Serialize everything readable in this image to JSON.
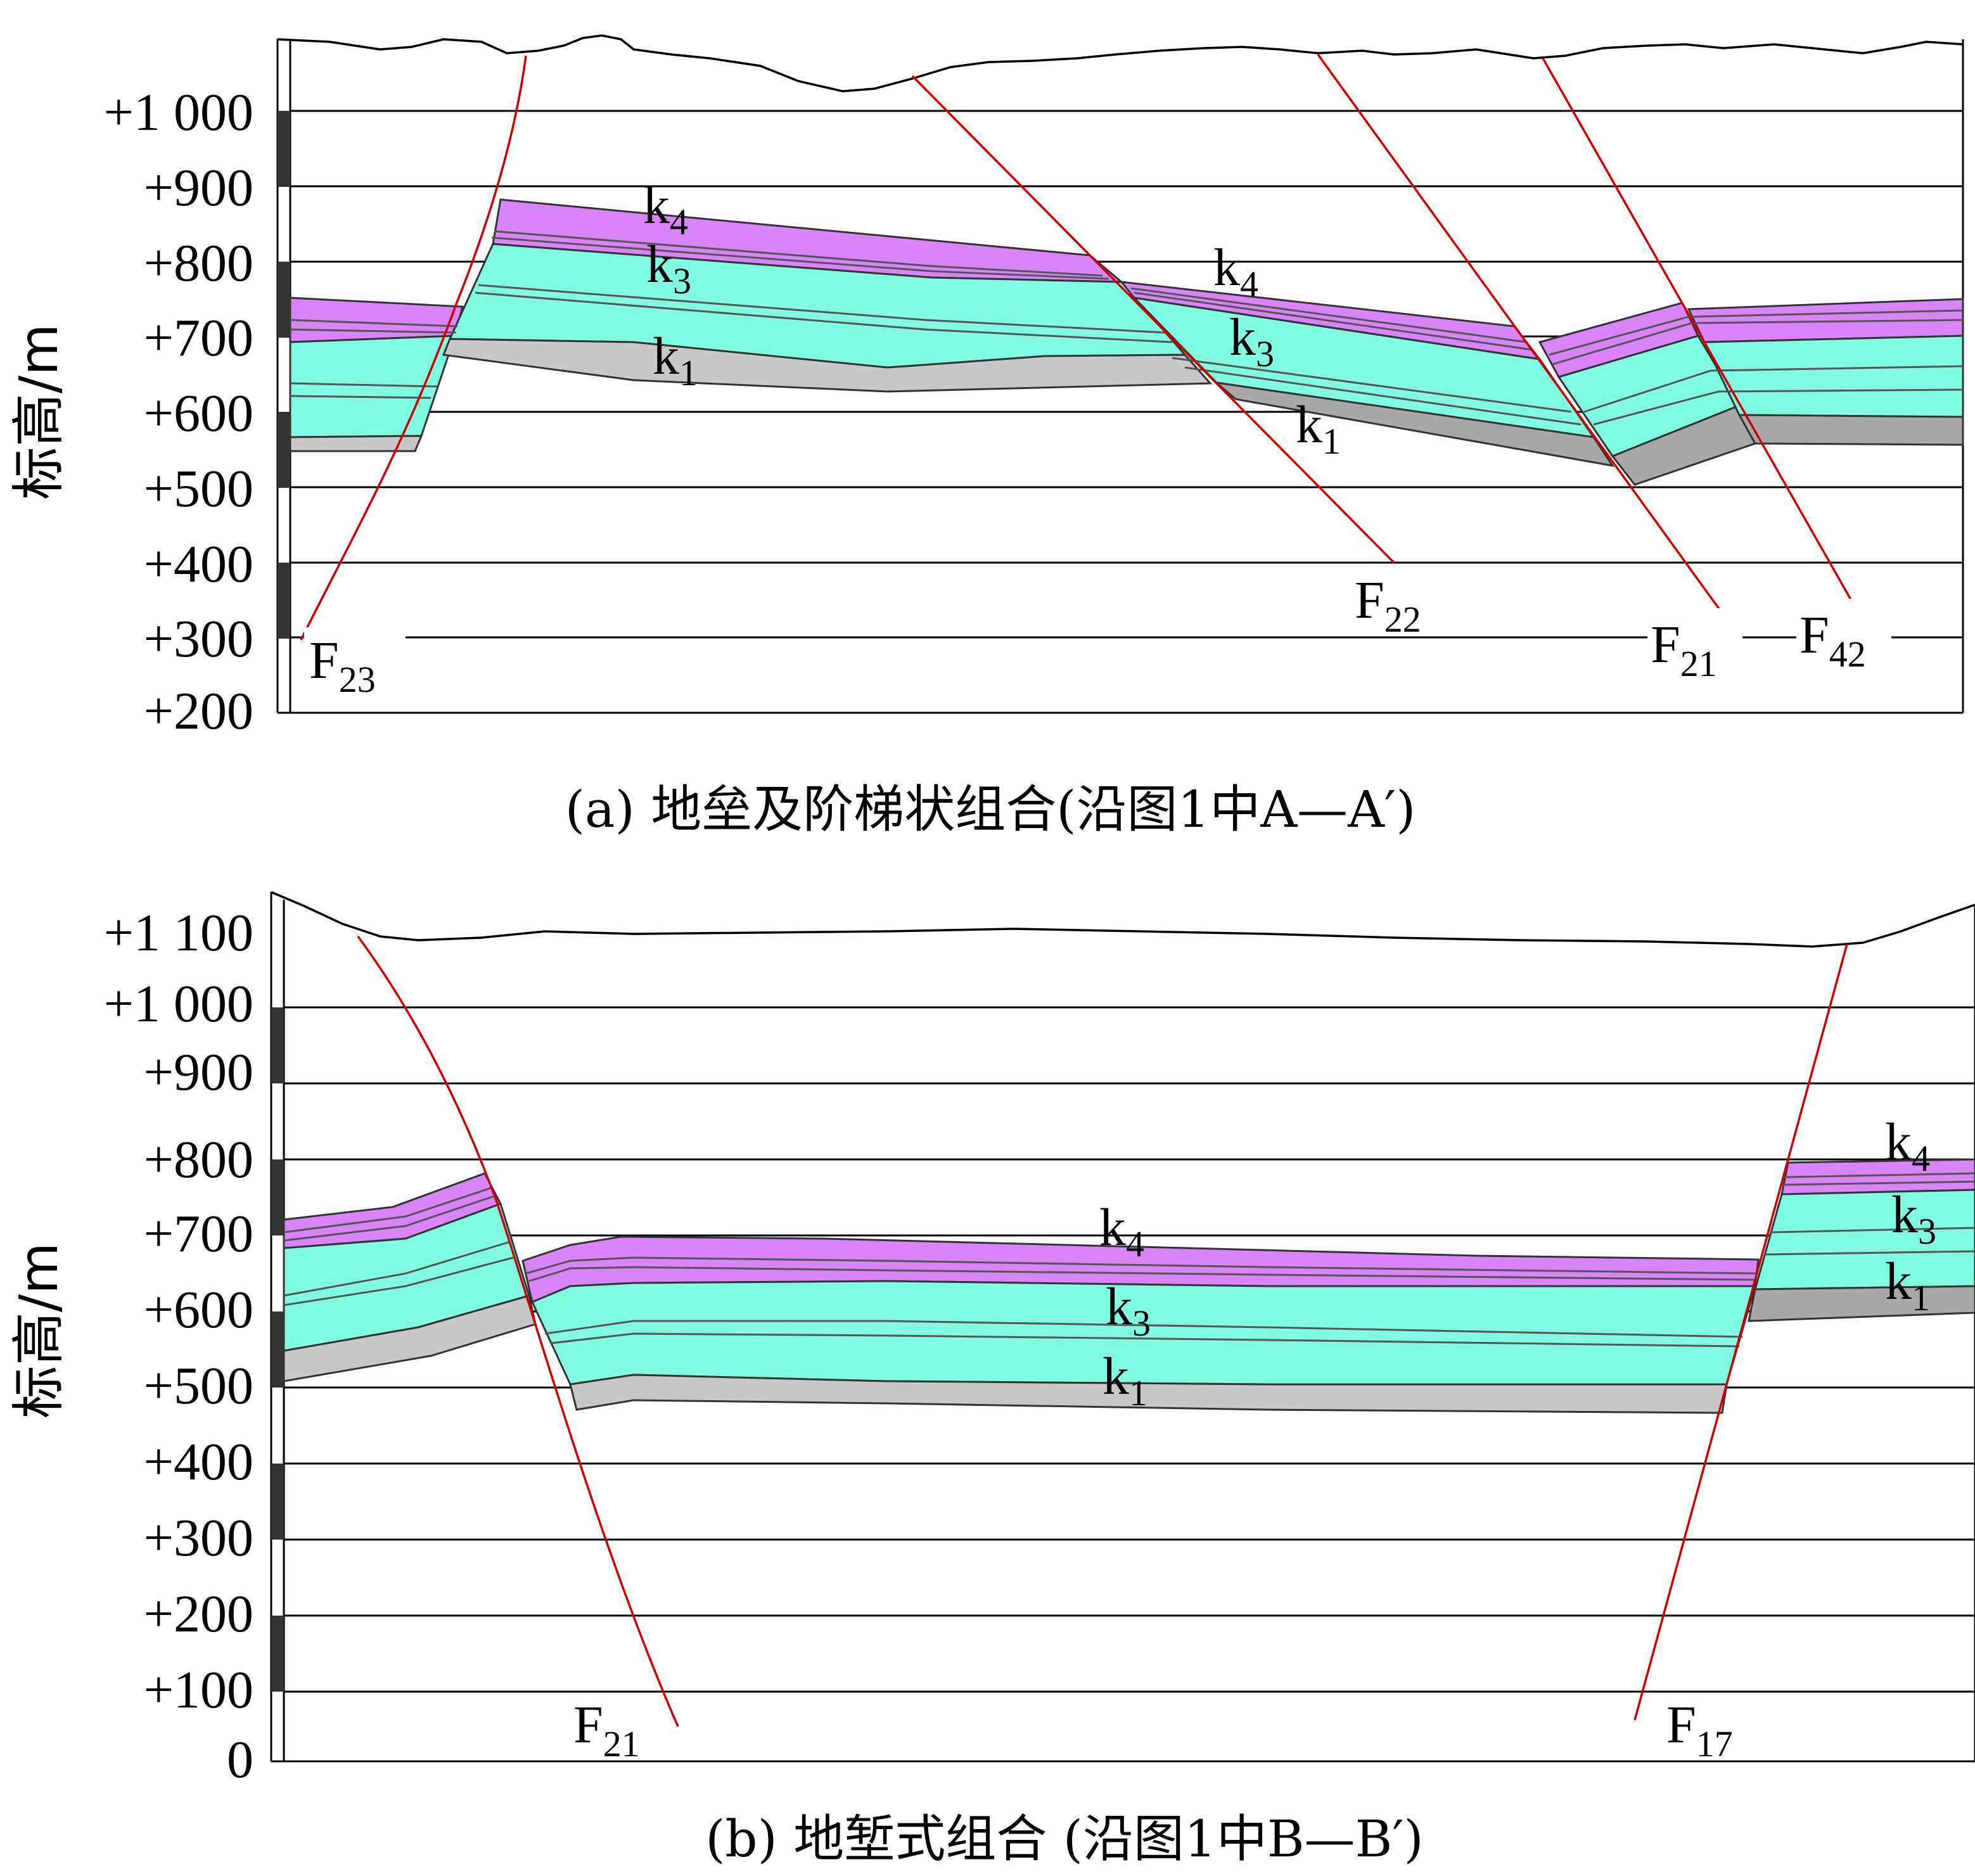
{
  "panels": [
    {
      "id": "a",
      "caption": "(a)  地垒及阶梯状组合(沿图1中A—A′)",
      "y_axis_label": "标高/m",
      "y_ticks": [
        "+1 000",
        "+900",
        "+800",
        "+700",
        "+600",
        "+500",
        "+400",
        "+300",
        "+200"
      ],
      "layer_labels": [
        {
          "base": "k",
          "sub": "4"
        },
        {
          "base": "k",
          "sub": "3"
        },
        {
          "base": "k",
          "sub": "1"
        },
        {
          "base": "k",
          "sub": "4"
        },
        {
          "base": "k",
          "sub": "3"
        },
        {
          "base": "k",
          "sub": "1"
        }
      ],
      "fault_labels": [
        {
          "base": "F",
          "sub": "23"
        },
        {
          "base": "F",
          "sub": "22"
        },
        {
          "base": "F",
          "sub": "21"
        },
        {
          "base": "F",
          "sub": "42"
        }
      ]
    },
    {
      "id": "b",
      "caption": "(b)  地堑式组合 (沿图1中B—B′)",
      "y_axis_label": "标高/m",
      "y_ticks": [
        "+1 100",
        "+1 000",
        "+900",
        "+800",
        "+700",
        "+600",
        "+500",
        "+400",
        "+300",
        "+200",
        "+100",
        "0"
      ],
      "layer_labels": [
        {
          "base": "k",
          "sub": "4"
        },
        {
          "base": "k",
          "sub": "3"
        },
        {
          "base": "k",
          "sub": "1"
        },
        {
          "base": "k",
          "sub": "4"
        },
        {
          "base": "k",
          "sub": "3"
        },
        {
          "base": "k",
          "sub": "1"
        }
      ],
      "fault_labels": [
        {
          "base": "F",
          "sub": "21"
        },
        {
          "base": "F",
          "sub": "17"
        }
      ]
    }
  ],
  "colors": {
    "k4": "#d984fa",
    "k3": "#80fce0",
    "k1": "#c8c8c8",
    "fault": "#d00000"
  }
}
